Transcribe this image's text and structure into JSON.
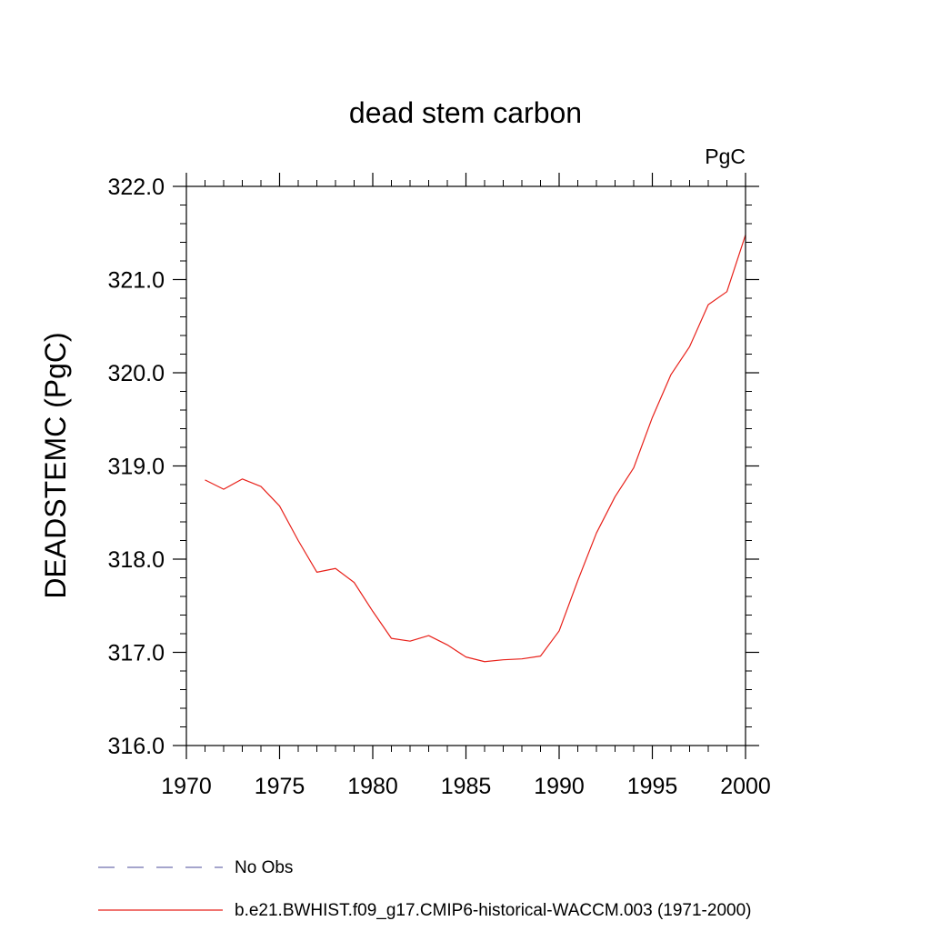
{
  "chart_data": {
    "type": "line",
    "title": "dead stem carbon",
    "unit_label": "PgC",
    "xlabel": "",
    "ylabel": "DEADSTEMC  (PgC)",
    "xlim": [
      1970,
      2000
    ],
    "ylim": [
      316.0,
      322.0
    ],
    "x_ticks": [
      1970,
      1975,
      1980,
      1985,
      1990,
      1995,
      2000
    ],
    "x_tick_labels": [
      "1970",
      "1975",
      "1980",
      "1985",
      "1990",
      "1995",
      "2000"
    ],
    "y_ticks": [
      316.0,
      317.0,
      318.0,
      319.0,
      320.0,
      321.0,
      322.0
    ],
    "y_tick_labels": [
      "316.0",
      "317.0",
      "318.0",
      "319.0",
      "320.0",
      "321.0",
      "322.0"
    ],
    "grid": false,
    "legend_position": "bottom",
    "legend": [
      {
        "label": "No Obs",
        "color": "#6f6fae",
        "dashed": true
      },
      {
        "label": "b.e21.BWHIST.f09_g17.CMIP6-historical-WACCM.003 (1971-2000)",
        "color": "#e8211a",
        "dashed": false
      }
    ],
    "series": [
      {
        "name": "b.e21.BWHIST.f09_g17.CMIP6-historical-WACCM.003 (1971-2000)",
        "color": "#e8211a",
        "x": [
          1971,
          1972,
          1973,
          1974,
          1975,
          1976,
          1977,
          1978,
          1979,
          1980,
          1981,
          1982,
          1983,
          1984,
          1985,
          1986,
          1987,
          1988,
          1989,
          1990,
          1991,
          1992,
          1993,
          1994,
          1995,
          1996,
          1997,
          1998,
          1999,
          2000
        ],
        "y": [
          318.85,
          318.75,
          318.86,
          318.78,
          318.57,
          318.2,
          317.86,
          317.9,
          317.75,
          317.44,
          317.15,
          317.12,
          317.18,
          317.08,
          316.95,
          316.9,
          316.92,
          316.93,
          316.96,
          317.23,
          317.77,
          318.28,
          318.67,
          318.98,
          319.52,
          319.98,
          320.28,
          320.73,
          320.87,
          321.48
        ]
      }
    ]
  }
}
